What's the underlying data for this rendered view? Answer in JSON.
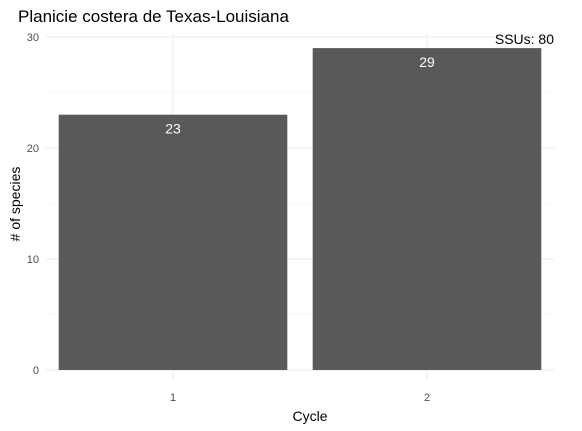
{
  "chart_data": {
    "type": "bar",
    "title": "Planicie costera de Texas-Louisiana",
    "xlabel": "Cycle",
    "ylabel": "# of species",
    "categories": [
      "1",
      "2"
    ],
    "values": [
      23,
      29
    ],
    "data_labels": [
      "23",
      "29"
    ],
    "ylim": [
      0,
      30
    ],
    "yticks": [
      0,
      10,
      20,
      30
    ],
    "ytick_labels": [
      "0",
      "10",
      "20",
      "30"
    ],
    "annotation": "SSUs: 80",
    "bar_color": "#595959",
    "label_color": "#ffffff",
    "grid": true,
    "legend": "none"
  }
}
